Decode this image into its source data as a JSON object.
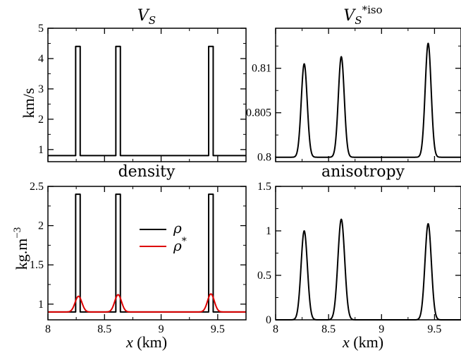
{
  "colors": {
    "black": "#000000",
    "red": "#dd0000"
  },
  "chart_data": [
    {
      "type": "line",
      "title": "V_S",
      "title_main": "V",
      "title_sub": "S",
      "ylabel": "km/s",
      "xlim": [
        8,
        9.75
      ],
      "ylim": [
        0.6,
        5
      ],
      "yticks": [
        1,
        2,
        3,
        4,
        5
      ],
      "series": [
        {
          "color": "#000000",
          "kind": "blocks",
          "base": 0.8,
          "peak": 4.4,
          "blocks": [
            [
              8.245,
              8.285
            ],
            [
              8.6,
              8.64
            ],
            [
              9.42,
              9.46
            ]
          ]
        }
      ]
    },
    {
      "type": "line",
      "title": "V_S^{*iso}",
      "title_main": "V",
      "title_sub": "S",
      "title_sup": "*iso",
      "xlim": [
        8,
        9.75
      ],
      "ylim": [
        0.7995,
        0.8145
      ],
      "yticks": [
        0.8,
        0.805,
        0.81
      ],
      "series": [
        {
          "color": "#000000",
          "kind": "gauss",
          "base": 0.8,
          "peaks": [
            [
              8.27,
              0.0105,
              0.028
            ],
            [
              8.62,
              0.0113,
              0.028
            ],
            [
              9.44,
              0.0128,
              0.028
            ]
          ]
        }
      ]
    },
    {
      "type": "line",
      "title": "density",
      "ylabel": "kg.m⁻³",
      "xlabel": "x (km)",
      "xlabel_var": "x",
      "xlabel_unit": " (km)",
      "xlim": [
        8,
        9.75
      ],
      "ylim": [
        0.8,
        2.5
      ],
      "xticks": [
        8,
        8.5,
        9,
        9.5
      ],
      "xtick_labels": [
        "8",
        "8.5",
        "9",
        "9.5"
      ],
      "yticks": [
        1,
        1.5,
        2,
        2.5
      ],
      "ytick_labels": [
        "1",
        "1.5",
        "2",
        "2.5"
      ],
      "legend": [
        {
          "label": "ρ",
          "color": "#000000"
        },
        {
          "label": "ρ",
          "sup": "*",
          "color": "#dd0000"
        }
      ],
      "series": [
        {
          "color": "#000000",
          "kind": "blocks",
          "base": 0.9,
          "peak": 2.4,
          "blocks": [
            [
              8.245,
              8.285
            ],
            [
              8.6,
              8.64
            ],
            [
              9.42,
              9.46
            ]
          ]
        },
        {
          "color": "#dd0000",
          "kind": "gauss",
          "base": 0.9,
          "peaks": [
            [
              8.27,
              0.2,
              0.03
            ],
            [
              8.62,
              0.22,
              0.03
            ],
            [
              9.44,
              0.23,
              0.03
            ]
          ]
        }
      ]
    },
    {
      "type": "line",
      "title": "anisotropy",
      "xlabel": "x (km)",
      "xlabel_var": "x",
      "xlabel_unit": " (km)",
      "xlim": [
        8,
        9.75
      ],
      "ylim": [
        0,
        1.5
      ],
      "xticks": [
        8,
        8.5,
        9,
        9.5
      ],
      "xtick_labels": [
        "8",
        "8.5",
        "9",
        "9.5"
      ],
      "yticks": [
        0,
        0.5,
        1,
        1.5
      ],
      "ytick_labels": [
        "0",
        "0.5",
        "1",
        "1.5"
      ],
      "series": [
        {
          "color": "#000000",
          "kind": "gauss",
          "base": 0,
          "peaks": [
            [
              8.27,
              1.0,
              0.03
            ],
            [
              8.62,
              1.13,
              0.032
            ],
            [
              9.44,
              1.08,
              0.03
            ]
          ]
        }
      ]
    }
  ]
}
